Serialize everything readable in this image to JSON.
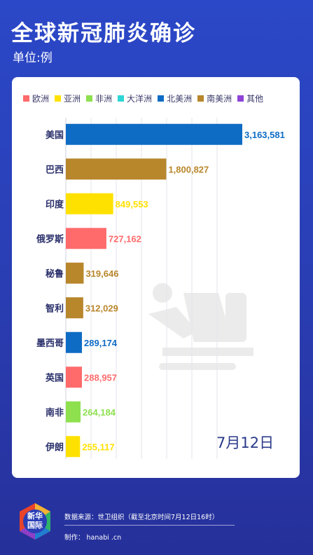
{
  "header": {
    "title": "全球新冠肺炎确诊",
    "unit": "单位:例"
  },
  "legend": [
    {
      "label": "欧洲",
      "color": "#ff6b6b"
    },
    {
      "label": "亚洲",
      "color": "#ffe100"
    },
    {
      "label": "非洲",
      "color": "#8ee04f"
    },
    {
      "label": "大洋洲",
      "color": "#2fd6d6"
    },
    {
      "label": "北美洲",
      "color": "#0f6cc4"
    },
    {
      "label": "南美洲",
      "color": "#b8862b"
    },
    {
      "label": "其他",
      "color": "#8e44d6"
    }
  ],
  "chart_data": {
    "type": "bar",
    "orientation": "horizontal",
    "title": "全球新冠肺炎确诊",
    "unit": "单位:例",
    "categories": [
      "美国",
      "巴西",
      "印度",
      "俄罗斯",
      "秘鲁",
      "智利",
      "墨西哥",
      "英国",
      "南非",
      "伊朗"
    ],
    "values": [
      3163581,
      1800827,
      849553,
      727162,
      319646,
      312029,
      289174,
      288957,
      264184,
      255117
    ],
    "value_labels": [
      "3,163,581",
      "1,800,827",
      "849,553",
      "727,162",
      "319,646",
      "312,029",
      "289,174",
      "288,957",
      "264,184",
      "255,117"
    ],
    "regions": [
      "北美洲",
      "南美洲",
      "亚洲",
      "欧洲",
      "南美洲",
      "南美洲",
      "北美洲",
      "欧洲",
      "非洲",
      "亚洲"
    ],
    "colors": [
      "#0f6cc4",
      "#b8862b",
      "#ffe100",
      "#ff6b6b",
      "#b8862b",
      "#b8862b",
      "#0f6cc4",
      "#ff6b6b",
      "#8ee04f",
      "#ffe100"
    ],
    "xlim": [
      0,
      3300000
    ],
    "grid": true,
    "legend_position": "top"
  },
  "date_label": "7月12日",
  "footer": {
    "logo_text": "新华\n国际",
    "source": "数据来源：世卫组织（截至北京时间7月12日16时）",
    "maker": "制作：  hanabi .cn"
  }
}
